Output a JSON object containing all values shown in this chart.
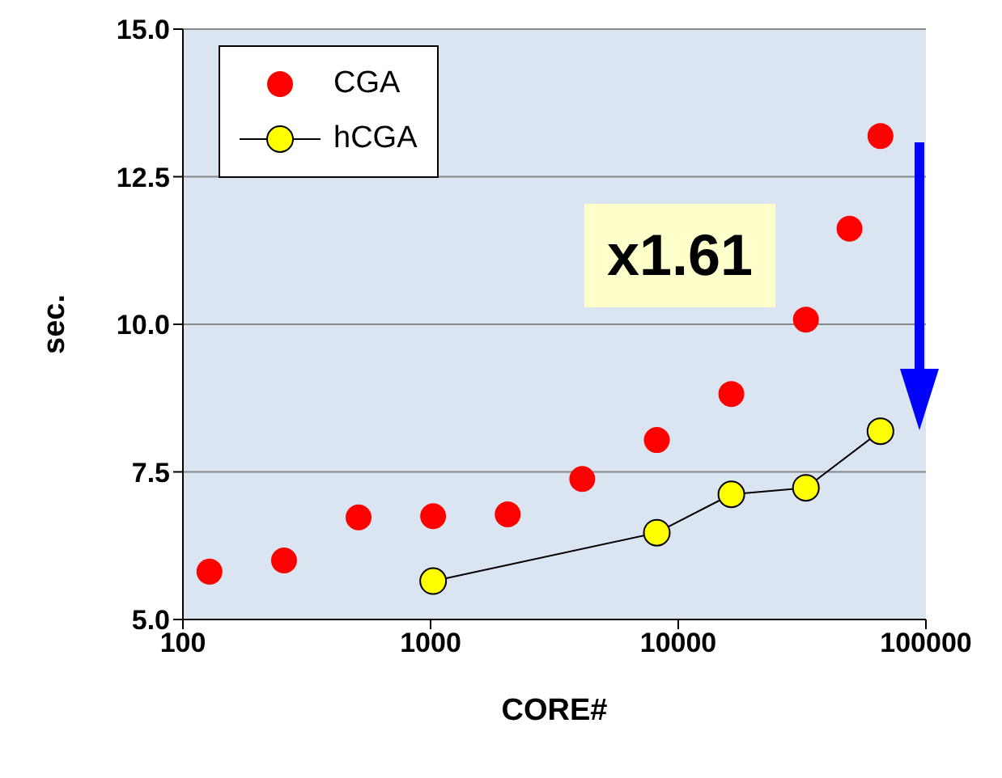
{
  "chart_data": {
    "type": "scatter",
    "xlabel": "CORE#",
    "ylabel": "sec.",
    "log": "x",
    "xlim": [
      100,
      100000
    ],
    "xticks": [
      100,
      1000,
      10000,
      100000
    ],
    "ylim": [
      5,
      15
    ],
    "yticks": [
      {
        "value": 5,
        "label": "5.0"
      },
      {
        "value": 7.5,
        "label": "7.5"
      },
      {
        "value": 10,
        "label": "10.0"
      },
      {
        "value": 12.5,
        "label": "12.5"
      },
      {
        "value": 15,
        "label": "15.0"
      }
    ],
    "grid": "y",
    "legend": "top left",
    "marker": "circle",
    "annotations": [
      "x1.61"
    ],
    "series": [
      {
        "name": "CGA",
        "color": "#ff0000",
        "x": [
          128,
          256,
          512,
          1024,
          2048,
          4096,
          8192,
          16384,
          32768,
          49152,
          65536
        ],
        "values": [
          5.81,
          6.0,
          6.73,
          6.75,
          6.78,
          7.38,
          8.04,
          8.82,
          10.08,
          11.62,
          13.19
        ]
      },
      {
        "name": "hCGA",
        "type": "line",
        "color": "#ffff00",
        "x": [
          1024,
          8192,
          16384,
          32768,
          65536
        ],
        "values": [
          5.65,
          6.47,
          7.12,
          7.23,
          8.19
        ]
      }
    ]
  }
}
